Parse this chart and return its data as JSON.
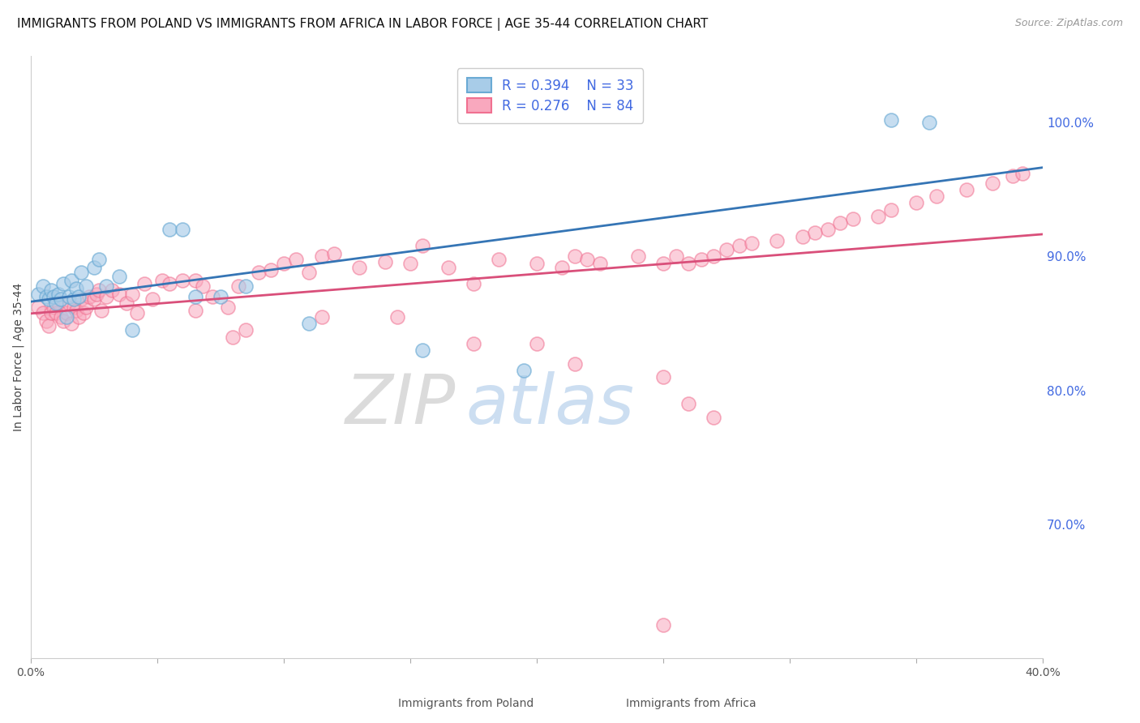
{
  "title": "IMMIGRANTS FROM POLAND VS IMMIGRANTS FROM AFRICA IN LABOR FORCE | AGE 35-44 CORRELATION CHART",
  "source": "Source: ZipAtlas.com",
  "ylabel": "In Labor Force | Age 35-44",
  "xlim": [
    0.0,
    0.4
  ],
  "ylim": [
    0.6,
    1.05
  ],
  "xticks": [
    0.0,
    0.05,
    0.1,
    0.15,
    0.2,
    0.25,
    0.3,
    0.35,
    0.4
  ],
  "xticklabels": [
    "0.0%",
    "",
    "",
    "",
    "",
    "",
    "",
    "",
    "40.0%"
  ],
  "right_yticks": [
    0.7,
    0.8,
    0.9,
    1.0
  ],
  "right_yticklabels": [
    "70.0%",
    "80.0%",
    "90.0%",
    "100.0%"
  ],
  "legend_poland_r": "R = 0.394",
  "legend_poland_n": "N = 33",
  "legend_africa_r": "R = 0.276",
  "legend_africa_n": "N = 84",
  "color_poland_face": "#a8cce8",
  "color_poland_edge": "#6aaad4",
  "color_africa_face": "#f9a8be",
  "color_africa_edge": "#f07090",
  "color_line_poland": "#3575b5",
  "color_line_africa": "#d94f7a",
  "color_axis_right": "#4169e1",
  "color_legend_text": "#4169e1",
  "watermark_zip": "ZIP",
  "watermark_atlas": "atlas",
  "grid_color": "#e0e0e0",
  "background_color": "#ffffff",
  "fig_width": 14.06,
  "fig_height": 8.92,
  "title_fontsize": 11,
  "axis_label_fontsize": 10,
  "tick_fontsize": 10,
  "poland_x": [
    0.003,
    0.005,
    0.006,
    0.007,
    0.008,
    0.009,
    0.01,
    0.011,
    0.012,
    0.013,
    0.014,
    0.015,
    0.016,
    0.017,
    0.018,
    0.019,
    0.02,
    0.022,
    0.025,
    0.027,
    0.03,
    0.035,
    0.04,
    0.055,
    0.06,
    0.065,
    0.075,
    0.085,
    0.11,
    0.155,
    0.195,
    0.34,
    0.355
  ],
  "poland_y": [
    0.872,
    0.878,
    0.87,
    0.868,
    0.875,
    0.87,
    0.865,
    0.872,
    0.868,
    0.88,
    0.855,
    0.87,
    0.882,
    0.868,
    0.876,
    0.87,
    0.888,
    0.878,
    0.892,
    0.898,
    0.878,
    0.885,
    0.845,
    0.92,
    0.92,
    0.87,
    0.87,
    0.878,
    0.85,
    0.83,
    0.815,
    1.002,
    1.0
  ],
  "africa_x": [
    0.003,
    0.005,
    0.006,
    0.007,
    0.008,
    0.009,
    0.01,
    0.011,
    0.012,
    0.013,
    0.014,
    0.015,
    0.016,
    0.017,
    0.018,
    0.019,
    0.02,
    0.021,
    0.022,
    0.023,
    0.025,
    0.026,
    0.027,
    0.028,
    0.03,
    0.032,
    0.035,
    0.038,
    0.04,
    0.042,
    0.045,
    0.048,
    0.052,
    0.055,
    0.06,
    0.065,
    0.068,
    0.072,
    0.078,
    0.082,
    0.09,
    0.095,
    0.1,
    0.105,
    0.11,
    0.115,
    0.12,
    0.13,
    0.14,
    0.15,
    0.155,
    0.165,
    0.175,
    0.185,
    0.2,
    0.21,
    0.215,
    0.22,
    0.225,
    0.24,
    0.25,
    0.255,
    0.26,
    0.265,
    0.27,
    0.275,
    0.28,
    0.285,
    0.295,
    0.305,
    0.31,
    0.315,
    0.32,
    0.325,
    0.335,
    0.34,
    0.35,
    0.358,
    0.37,
    0.38,
    0.388,
    0.392,
    0.08,
    0.25
  ],
  "africa_y": [
    0.862,
    0.858,
    0.852,
    0.848,
    0.858,
    0.862,
    0.858,
    0.865,
    0.855,
    0.852,
    0.858,
    0.865,
    0.85,
    0.862,
    0.86,
    0.855,
    0.868,
    0.858,
    0.862,
    0.87,
    0.868,
    0.872,
    0.875,
    0.86,
    0.87,
    0.875,
    0.872,
    0.865,
    0.872,
    0.858,
    0.88,
    0.868,
    0.882,
    0.88,
    0.882,
    0.882,
    0.878,
    0.87,
    0.862,
    0.878,
    0.888,
    0.89,
    0.895,
    0.898,
    0.888,
    0.9,
    0.902,
    0.892,
    0.896,
    0.895,
    0.908,
    0.892,
    0.88,
    0.898,
    0.895,
    0.892,
    0.9,
    0.898,
    0.895,
    0.9,
    0.895,
    0.9,
    0.895,
    0.898,
    0.9,
    0.905,
    0.908,
    0.91,
    0.912,
    0.915,
    0.918,
    0.92,
    0.925,
    0.928,
    0.93,
    0.935,
    0.94,
    0.945,
    0.95,
    0.955,
    0.96,
    0.962,
    0.84,
    0.625
  ],
  "africa_outliers_x": [
    0.065,
    0.085,
    0.115,
    0.145,
    0.175,
    0.2,
    0.215,
    0.25,
    0.26,
    0.27
  ],
  "africa_outliers_y": [
    0.86,
    0.845,
    0.855,
    0.855,
    0.835,
    0.835,
    0.82,
    0.81,
    0.79,
    0.78
  ]
}
